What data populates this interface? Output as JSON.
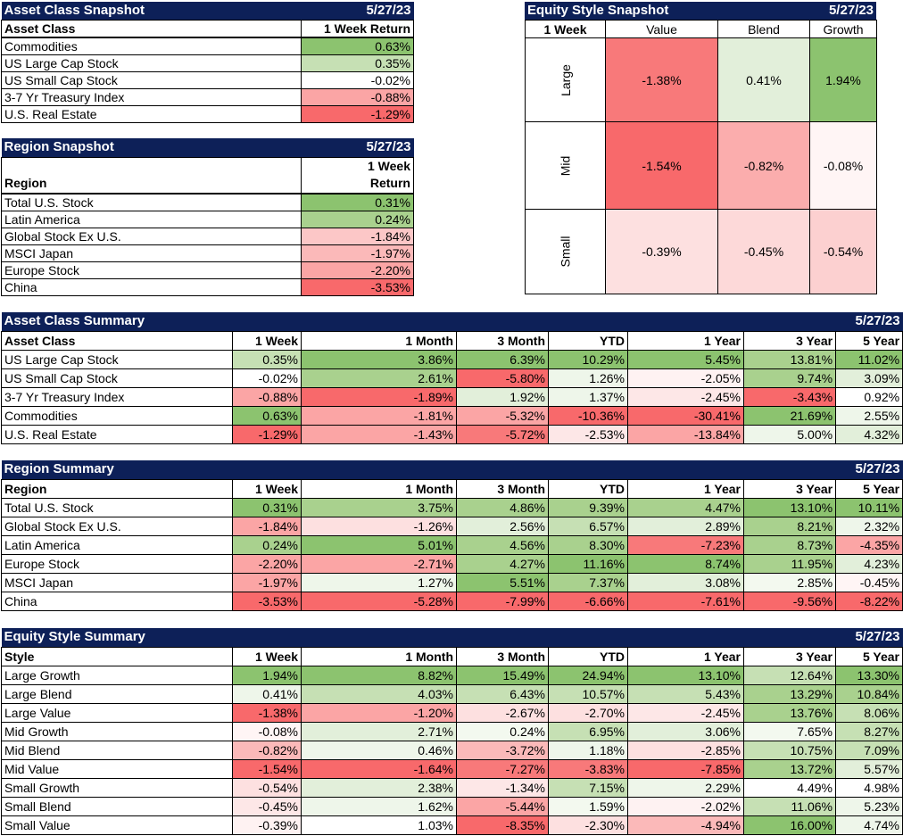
{
  "asset_snapshot": {
    "title": "Asset Class Snapshot",
    "date": "5/27/23",
    "col1": "Asset Class",
    "col2": "1 Week Return",
    "rows": [
      {
        "name": "Commodities",
        "value": "0.63%",
        "color": "#8cc36f"
      },
      {
        "name": "US Large Cap Stock",
        "value": "0.35%",
        "color": "#c6e0b4"
      },
      {
        "name": "US Small Cap Stock",
        "value": "-0.02%",
        "color": "#ffffff"
      },
      {
        "name": "3-7 Yr Treasury Index",
        "value": "-0.88%",
        "color": "#fba5a5"
      },
      {
        "name": "U.S. Real Estate",
        "value": "-1.29%",
        "color": "#f8696b"
      }
    ]
  },
  "region_snapshot": {
    "title": "Region Snapshot",
    "date": "5/27/23",
    "col1": "Region",
    "col2a": "1 Week",
    "col2b": "Return",
    "rows": [
      {
        "name": "Total U.S. Stock",
        "value": "0.31%",
        "color": "#8cc36f"
      },
      {
        "name": "Latin America",
        "value": "0.24%",
        "color": "#a9d18e"
      },
      {
        "name": "Global Stock Ex U.S.",
        "value": "-1.84%",
        "color": "#fcc7c7"
      },
      {
        "name": "MSCI Japan",
        "value": "-1.97%",
        "color": "#fbb9b9"
      },
      {
        "name": "Europe Stock",
        "value": "-2.20%",
        "color": "#fba5a5"
      },
      {
        "name": "China",
        "value": "-3.53%",
        "color": "#f8696b"
      }
    ]
  },
  "style_snapshot": {
    "title": "Equity Style Snapshot",
    "date": "5/27/23",
    "corner": "1 Week",
    "cols": [
      "Value",
      "Blend",
      "Growth"
    ],
    "rows": [
      {
        "label": "Large",
        "cells": [
          {
            "value": "-1.38%",
            "color": "#f8797a"
          },
          {
            "value": "0.41%",
            "color": "#e2efda"
          },
          {
            "value": "1.94%",
            "color": "#8cc36f"
          }
        ]
      },
      {
        "label": "Mid",
        "cells": [
          {
            "value": "-1.54%",
            "color": "#f8696b"
          },
          {
            "value": "-0.82%",
            "color": "#fbadad"
          },
          {
            "value": "-0.08%",
            "color": "#fff5f5"
          }
        ]
      },
      {
        "label": "Small",
        "cells": [
          {
            "value": "-0.39%",
            "color": "#fde0e0"
          },
          {
            "value": "-0.45%",
            "color": "#fdd9d9"
          },
          {
            "value": "-0.54%",
            "color": "#fcd0d0"
          }
        ]
      }
    ]
  },
  "summary_headers": [
    "1 Week",
    "1 Month",
    "3 Month",
    "YTD",
    "1 Year",
    "3 Year",
    "5 Year"
  ],
  "asset_summary": {
    "title": "Asset Class Summary",
    "date": "5/27/23",
    "col1": "Asset Class",
    "rows": [
      {
        "name": "US Large Cap Stock",
        "values": [
          "0.35%",
          "3.86%",
          "6.39%",
          "10.29%",
          "5.45%",
          "13.81%",
          "11.02%"
        ],
        "colors": [
          "#c6e0b4",
          "#8cc36f",
          "#8cc36f",
          "#8cc36f",
          "#8cc36f",
          "#a9d18e",
          "#8cc36f"
        ]
      },
      {
        "name": "US Small Cap Stock",
        "values": [
          "-0.02%",
          "2.61%",
          "-5.80%",
          "1.26%",
          "-2.05%",
          "9.74%",
          "3.09%"
        ],
        "colors": [
          "#ffffff",
          "#a9d18e",
          "#f8696b",
          "#eef6ea",
          "#fef2f2",
          "#a9d18e",
          "#e2efda"
        ]
      },
      {
        "name": "3-7 Yr Treasury Index",
        "values": [
          "-0.88%",
          "-1.89%",
          "1.92%",
          "1.37%",
          "-2.45%",
          "-3.43%",
          "0.92%"
        ],
        "colors": [
          "#fba5a5",
          "#f8696b",
          "#e2efda",
          "#eef6ea",
          "#fde7e7",
          "#f8696b",
          "#ffffff"
        ]
      },
      {
        "name": "Commodities",
        "values": [
          "0.63%",
          "-1.81%",
          "-5.32%",
          "-10.36%",
          "-30.41%",
          "21.69%",
          "2.55%"
        ],
        "colors": [
          "#8cc36f",
          "#fba5a5",
          "#fba5a5",
          "#f8696b",
          "#f8696b",
          "#8cc36f",
          "#eef6ea"
        ]
      },
      {
        "name": "U.S. Real Estate",
        "values": [
          "-1.29%",
          "-1.43%",
          "-5.72%",
          "-2.53%",
          "-13.84%",
          "5.00%",
          "4.32%"
        ],
        "colors": [
          "#f8696b",
          "#fba5a5",
          "#f8797a",
          "#fde7e7",
          "#fba5a5",
          "#eef6ea",
          "#e2efda"
        ]
      }
    ]
  },
  "region_summary": {
    "title": "Region Summary",
    "date": "5/27/23",
    "col1": "Region",
    "rows": [
      {
        "name": "Total U.S. Stock",
        "values": [
          "0.31%",
          "3.75%",
          "4.86%",
          "9.39%",
          "4.47%",
          "13.10%",
          "10.11%"
        ],
        "colors": [
          "#8cc36f",
          "#a9d18e",
          "#a9d18e",
          "#a9d18e",
          "#a9d18e",
          "#8cc36f",
          "#8cc36f"
        ]
      },
      {
        "name": "Global Stock Ex U.S.",
        "values": [
          "-1.84%",
          "-1.26%",
          "2.56%",
          "6.57%",
          "2.89%",
          "8.21%",
          "2.32%"
        ],
        "colors": [
          "#fba5a5",
          "#fde0e0",
          "#e2efda",
          "#c6e0b4",
          "#e2efda",
          "#a9d18e",
          "#eef6ea"
        ]
      },
      {
        "name": "Latin America",
        "values": [
          "0.24%",
          "5.01%",
          "4.56%",
          "8.30%",
          "-7.23%",
          "8.73%",
          "-4.35%"
        ],
        "colors": [
          "#a9d18e",
          "#8cc36f",
          "#a9d18e",
          "#a9d18e",
          "#f8797a",
          "#a9d18e",
          "#fba5a5"
        ]
      },
      {
        "name": "Europe Stock",
        "values": [
          "-2.20%",
          "-2.71%",
          "4.27%",
          "11.16%",
          "8.74%",
          "11.95%",
          "4.23%"
        ],
        "colors": [
          "#fba5a5",
          "#fba5a5",
          "#a9d18e",
          "#8cc36f",
          "#8cc36f",
          "#a9d18e",
          "#e2efda"
        ]
      },
      {
        "name": "MSCI Japan",
        "values": [
          "-1.97%",
          "1.27%",
          "5.51%",
          "7.37%",
          "3.08%",
          "2.85%",
          "-0.45%"
        ],
        "colors": [
          "#fba5a5",
          "#eef6ea",
          "#8cc36f",
          "#a9d18e",
          "#e2efda",
          "#f3f9ef",
          "#fff5f5"
        ]
      },
      {
        "name": "China",
        "values": [
          "-3.53%",
          "-5.28%",
          "-7.99%",
          "-6.66%",
          "-7.61%",
          "-9.56%",
          "-8.22%"
        ],
        "colors": [
          "#f8696b",
          "#f8696b",
          "#f8696b",
          "#f8696b",
          "#f8696b",
          "#f8696b",
          "#f8696b"
        ]
      }
    ]
  },
  "style_summary": {
    "title": "Equity Style Summary",
    "date": "5/27/23",
    "col1": "Style",
    "rows": [
      {
        "name": "Large Growth",
        "values": [
          "1.94%",
          "8.82%",
          "15.49%",
          "24.94%",
          "13.10%",
          "12.64%",
          "13.30%"
        ],
        "colors": [
          "#8cc36f",
          "#8cc36f",
          "#8cc36f",
          "#8cc36f",
          "#8cc36f",
          "#c6e0b4",
          "#8cc36f"
        ]
      },
      {
        "name": "Large Blend",
        "values": [
          "0.41%",
          "4.03%",
          "6.43%",
          "10.57%",
          "5.43%",
          "13.29%",
          "10.84%"
        ],
        "colors": [
          "#eef6ea",
          "#c6e0b4",
          "#c6e0b4",
          "#c6e0b4",
          "#c6e0b4",
          "#a9d18e",
          "#a9d18e"
        ]
      },
      {
        "name": "Large Value",
        "values": [
          "-1.38%",
          "-1.20%",
          "-2.67%",
          "-2.70%",
          "-2.45%",
          "13.76%",
          "8.06%"
        ],
        "colors": [
          "#f8696b",
          "#fba5a5",
          "#fde0e0",
          "#fde0e0",
          "#fde7e7",
          "#a9d18e",
          "#c6e0b4"
        ]
      },
      {
        "name": "Mid Growth",
        "values": [
          "-0.08%",
          "2.71%",
          "0.24%",
          "6.95%",
          "3.06%",
          "7.65%",
          "8.27%"
        ],
        "colors": [
          "#fff5f5",
          "#e2efda",
          "#f3f9ef",
          "#c6e0b4",
          "#e2efda",
          "#f3f9ef",
          "#c6e0b4"
        ]
      },
      {
        "name": "Mid Blend",
        "values": [
          "-0.82%",
          "0.46%",
          "-3.72%",
          "1.18%",
          "-2.85%",
          "10.75%",
          "7.09%"
        ],
        "colors": [
          "#fbb9b9",
          "#eef6ea",
          "#fbb9b9",
          "#eef6ea",
          "#fde0e0",
          "#c6e0b4",
          "#c6e0b4"
        ]
      },
      {
        "name": "Mid Value",
        "values": [
          "-1.54%",
          "-1.64%",
          "-7.27%",
          "-3.83%",
          "-7.85%",
          "13.72%",
          "5.57%"
        ],
        "colors": [
          "#f8696b",
          "#f8696b",
          "#f8797a",
          "#f8797a",
          "#f8696b",
          "#a9d18e",
          "#e2efda"
        ]
      },
      {
        "name": "Small Growth",
        "values": [
          "-0.54%",
          "2.38%",
          "-1.34%",
          "7.15%",
          "2.29%",
          "4.49%",
          "4.98%"
        ],
        "colors": [
          "#fde0e0",
          "#e2efda",
          "#fde7e7",
          "#c6e0b4",
          "#eef6ea",
          "#ffffff",
          "#ffffff"
        ]
      },
      {
        "name": "Small Blend",
        "values": [
          "-0.45%",
          "1.62%",
          "-5.44%",
          "1.59%",
          "-2.02%",
          "11.06%",
          "5.23%"
        ],
        "colors": [
          "#fde7e7",
          "#eef6ea",
          "#fba5a5",
          "#f3f9ef",
          "#fef2f2",
          "#c6e0b4",
          "#eef6ea"
        ]
      },
      {
        "name": "Small Value",
        "values": [
          "-0.39%",
          "1.03%",
          "-8.35%",
          "-2.30%",
          "-4.94%",
          "16.00%",
          "4.74%"
        ],
        "colors": [
          "#fef2f2",
          "#ffffff",
          "#f8696b",
          "#fde0e0",
          "#fbb9b9",
          "#8cc36f",
          "#eef6ea"
        ]
      }
    ]
  }
}
